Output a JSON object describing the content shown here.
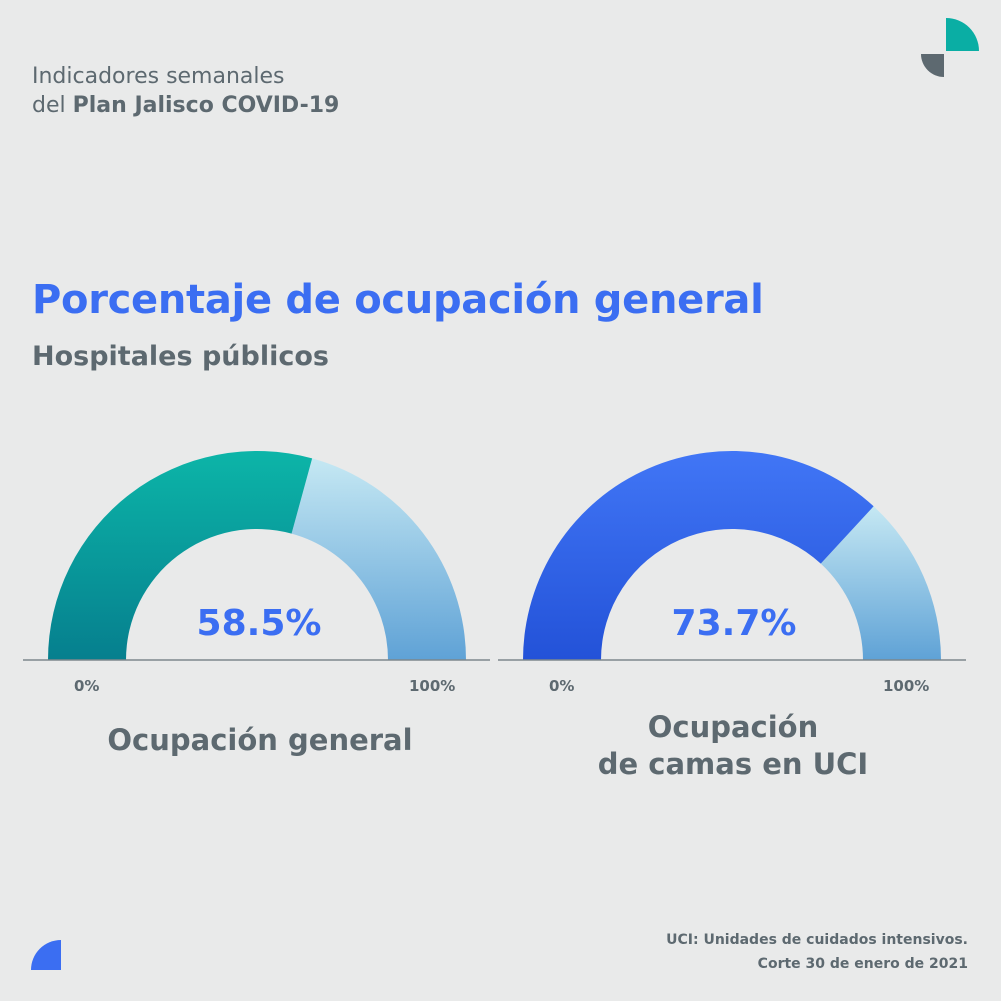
{
  "header": {
    "line1": "Indicadores semanales",
    "line2_prefix": "del ",
    "line2_bold": "Plan Jalisco COVID-19"
  },
  "title": "Porcentaje de ocupación general",
  "subtitle": "Hospitales públicos",
  "footnote": {
    "line1": "UCI: Unidades de cuidados intensivos.",
    "line2": "Corte 30 de enero de 2021"
  },
  "colors": {
    "accent": "#3b6ef2",
    "teal_fill": "#05a39a",
    "blue_fill": "#3b6ef2",
    "remainder": "#8ec3e4",
    "text_gray": "#5d6970"
  },
  "icons": [
    "logo-mark-icon",
    "logo-quarter-icon"
  ],
  "chart_data": [
    {
      "type": "gauge",
      "value": 58.5,
      "value_label": "58.5%",
      "range": [
        0,
        100
      ],
      "tick_min": "0%",
      "tick_max": "100%",
      "label_lines": [
        "Ocupación general"
      ],
      "fill_color": "#05a39a"
    },
    {
      "type": "gauge",
      "value": 73.7,
      "value_label": "73.7%",
      "range": [
        0,
        100
      ],
      "tick_min": "0%",
      "tick_max": "100%",
      "label_lines": [
        "Ocupación",
        "de camas en UCI"
      ],
      "fill_color": "#3b6ef2"
    }
  ]
}
